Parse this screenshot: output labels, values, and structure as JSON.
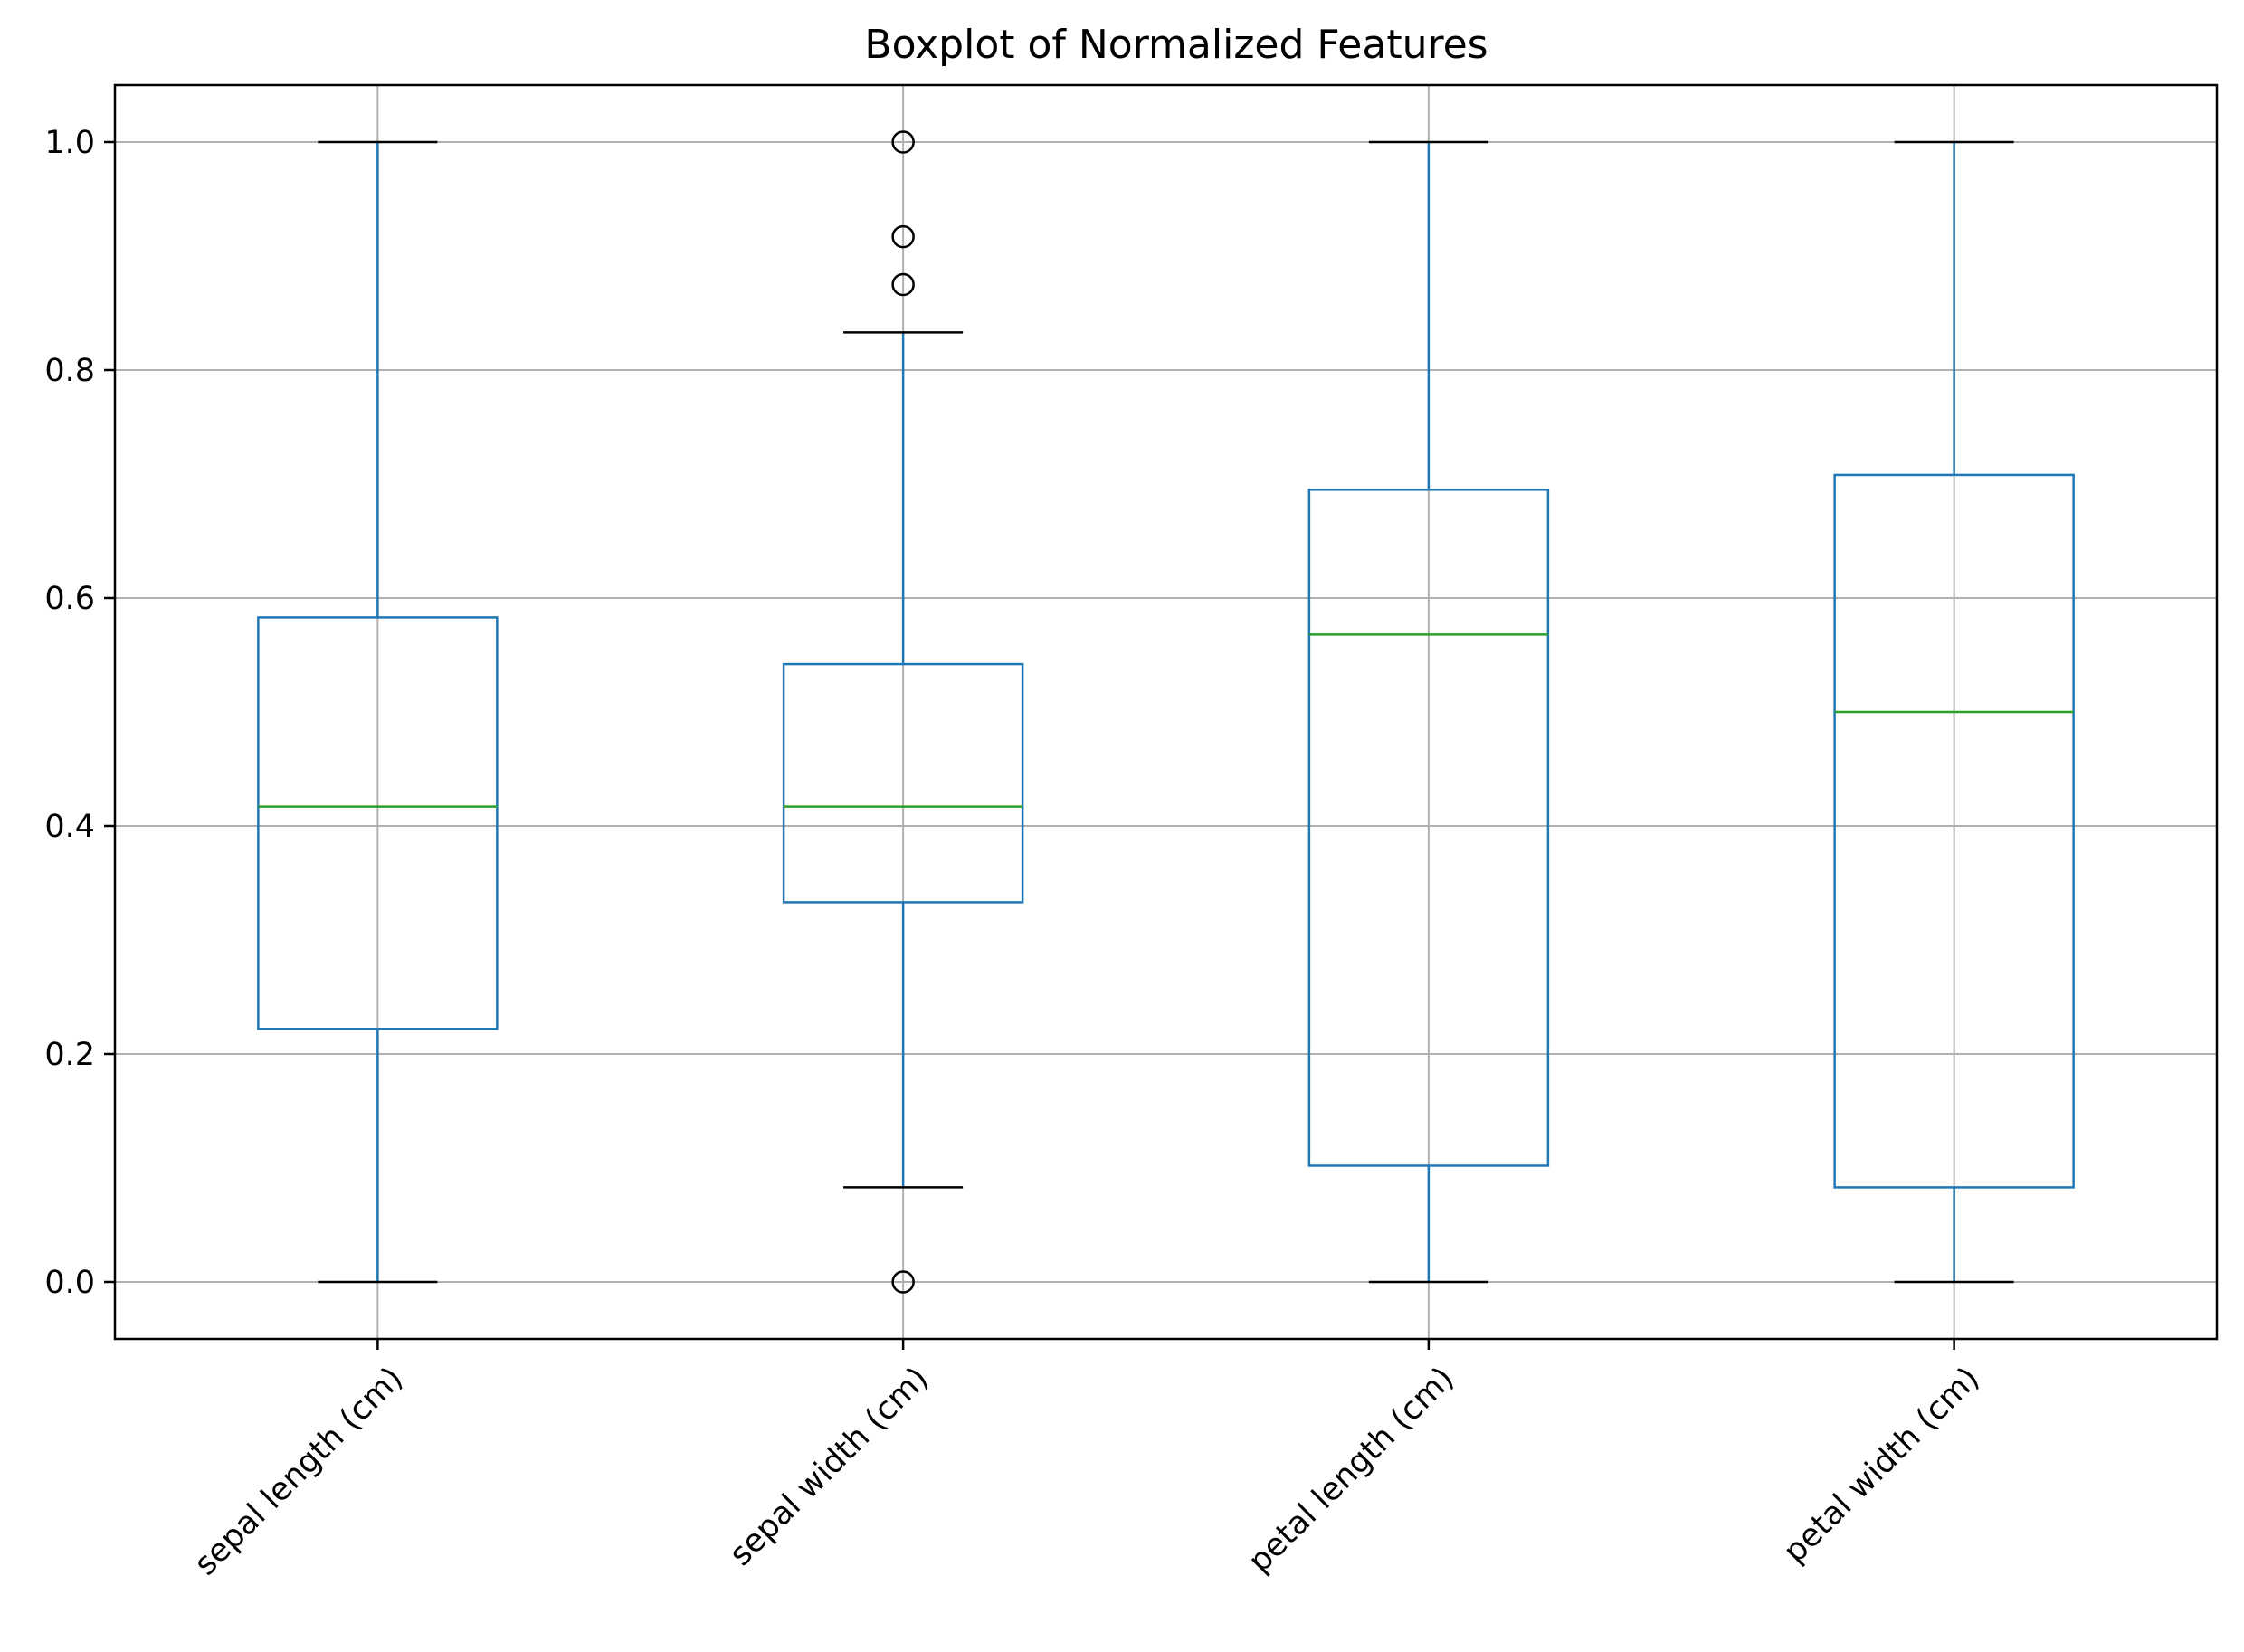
{
  "chart_data": {
    "type": "boxplot",
    "title": "Boxplot of Normalized Features",
    "xlabel": "",
    "ylabel": "",
    "ylim": [
      -0.05,
      1.05
    ],
    "yticks": [
      "0.0",
      "0.2",
      "0.4",
      "0.6",
      "0.8",
      "1.0"
    ],
    "ytick_values": [
      0.0,
      0.2,
      0.4,
      0.6,
      0.8,
      1.0
    ],
    "grid": true,
    "colors": {
      "box": "#1f77b4",
      "median": "#2ca02c",
      "cap": "#000000",
      "grid": "#b0b0b0",
      "outlier": "#000000"
    },
    "categories": [
      "sepal length (cm)",
      "sepal width (cm)",
      "petal length (cm)",
      "petal width (cm)"
    ],
    "boxes": [
      {
        "name": "sepal length (cm)",
        "whisker_low": 0.0,
        "q1": 0.222,
        "median": 0.417,
        "q3": 0.583,
        "whisker_high": 1.0,
        "outliers": []
      },
      {
        "name": "sepal width (cm)",
        "whisker_low": 0.083,
        "q1": 0.333,
        "median": 0.417,
        "q3": 0.542,
        "whisker_high": 0.833,
        "outliers": [
          0.0,
          0.875,
          0.917,
          1.0
        ]
      },
      {
        "name": "petal length (cm)",
        "whisker_low": 0.0,
        "q1": 0.102,
        "median": 0.568,
        "q3": 0.695,
        "whisker_high": 1.0,
        "outliers": []
      },
      {
        "name": "petal width (cm)",
        "whisker_low": 0.0,
        "q1": 0.083,
        "median": 0.5,
        "q3": 0.708,
        "whisker_high": 1.0,
        "outliers": []
      }
    ]
  }
}
